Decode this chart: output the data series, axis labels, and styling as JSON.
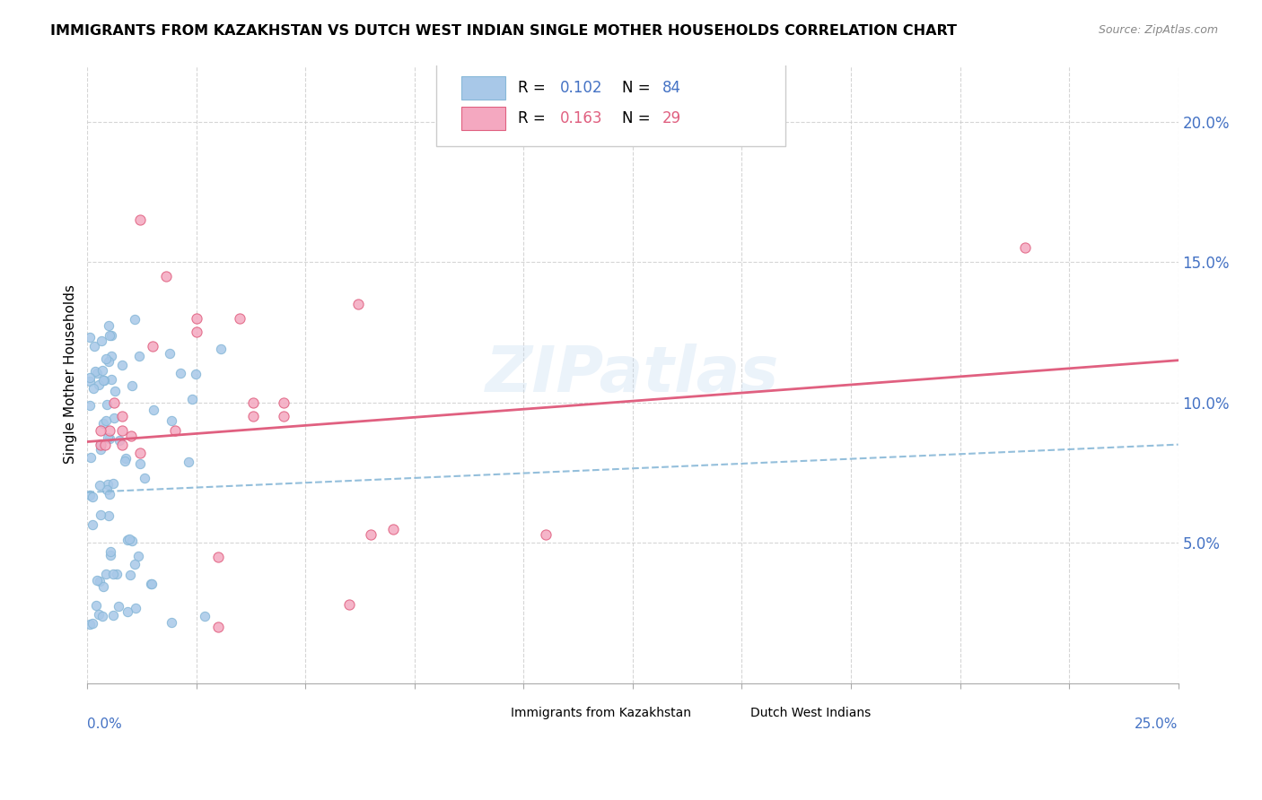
{
  "title": "IMMIGRANTS FROM KAZAKHSTAN VS DUTCH WEST INDIAN SINGLE MOTHER HOUSEHOLDS CORRELATION CHART",
  "source": "Source: ZipAtlas.com",
  "ylabel": "Single Mother Households",
  "legend_label1": "Immigrants from Kazakhstan",
  "legend_label2": "Dutch West Indians",
  "R1": 0.102,
  "N1": 84,
  "R2": 0.163,
  "N2": 29,
  "color_blue": "#a8c8e8",
  "color_pink": "#f4a8c0",
  "color_line_blue": "#88b8d8",
  "color_line_pink": "#e06080",
  "watermark": "ZIPatlas",
  "xlim": [
    0,
    0.25
  ],
  "ylim": [
    0,
    0.22
  ],
  "ytick_vals": [
    0.05,
    0.1,
    0.15,
    0.2
  ],
  "ytick_labels": [
    "5.0%",
    "10.0%",
    "15.0%",
    "20.0%"
  ],
  "blue_line_x": [
    0.0,
    0.25
  ],
  "blue_line_y": [
    0.068,
    0.085
  ],
  "pink_line_x": [
    0.0,
    0.25
  ],
  "pink_line_y": [
    0.086,
    0.115
  ]
}
